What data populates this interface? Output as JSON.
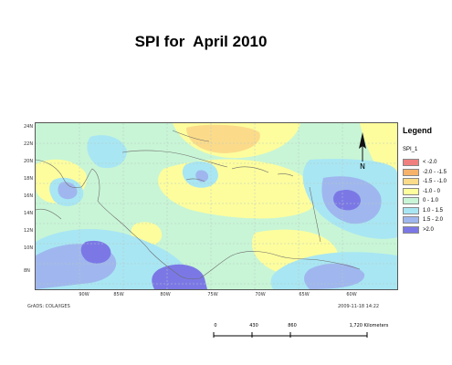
{
  "title": "SPI for  April 2010",
  "legend": {
    "title": "Legend",
    "variable": "SPI_1",
    "classes": [
      {
        "label": "< -2.0",
        "color": "#f08080"
      },
      {
        "label": "-2.0 - -1.5",
        "color": "#f6b26b"
      },
      {
        "label": "-1.5 - -1.0",
        "color": "#fbdb8a"
      },
      {
        "label": "-1.0 - 0",
        "color": "#fdfd9d"
      },
      {
        "label": "0 - 1.0",
        "color": "#c8f5d6"
      },
      {
        "label": "1.0 - 1.5",
        "color": "#a8e6f3"
      },
      {
        "label": "1.5 - 2.0",
        "color": "#9fb7ee"
      },
      {
        "label": ">2.0",
        "color": "#7b78e6"
      }
    ]
  },
  "map": {
    "lat_labels": [
      "24N",
      "22N",
      "20N",
      "18N",
      "16N",
      "14N",
      "12N",
      "10N",
      "8N"
    ],
    "lon_labels": [
      "90W",
      "85W",
      "80W",
      "75W",
      "70W",
      "65W",
      "60W"
    ],
    "credit": "GrADS: COLA/IGES",
    "timestamp": "2009-11-18 14:22"
  },
  "scale": {
    "ticks": [
      "0",
      "430",
      "860",
      "1,720 Kilometers"
    ]
  }
}
